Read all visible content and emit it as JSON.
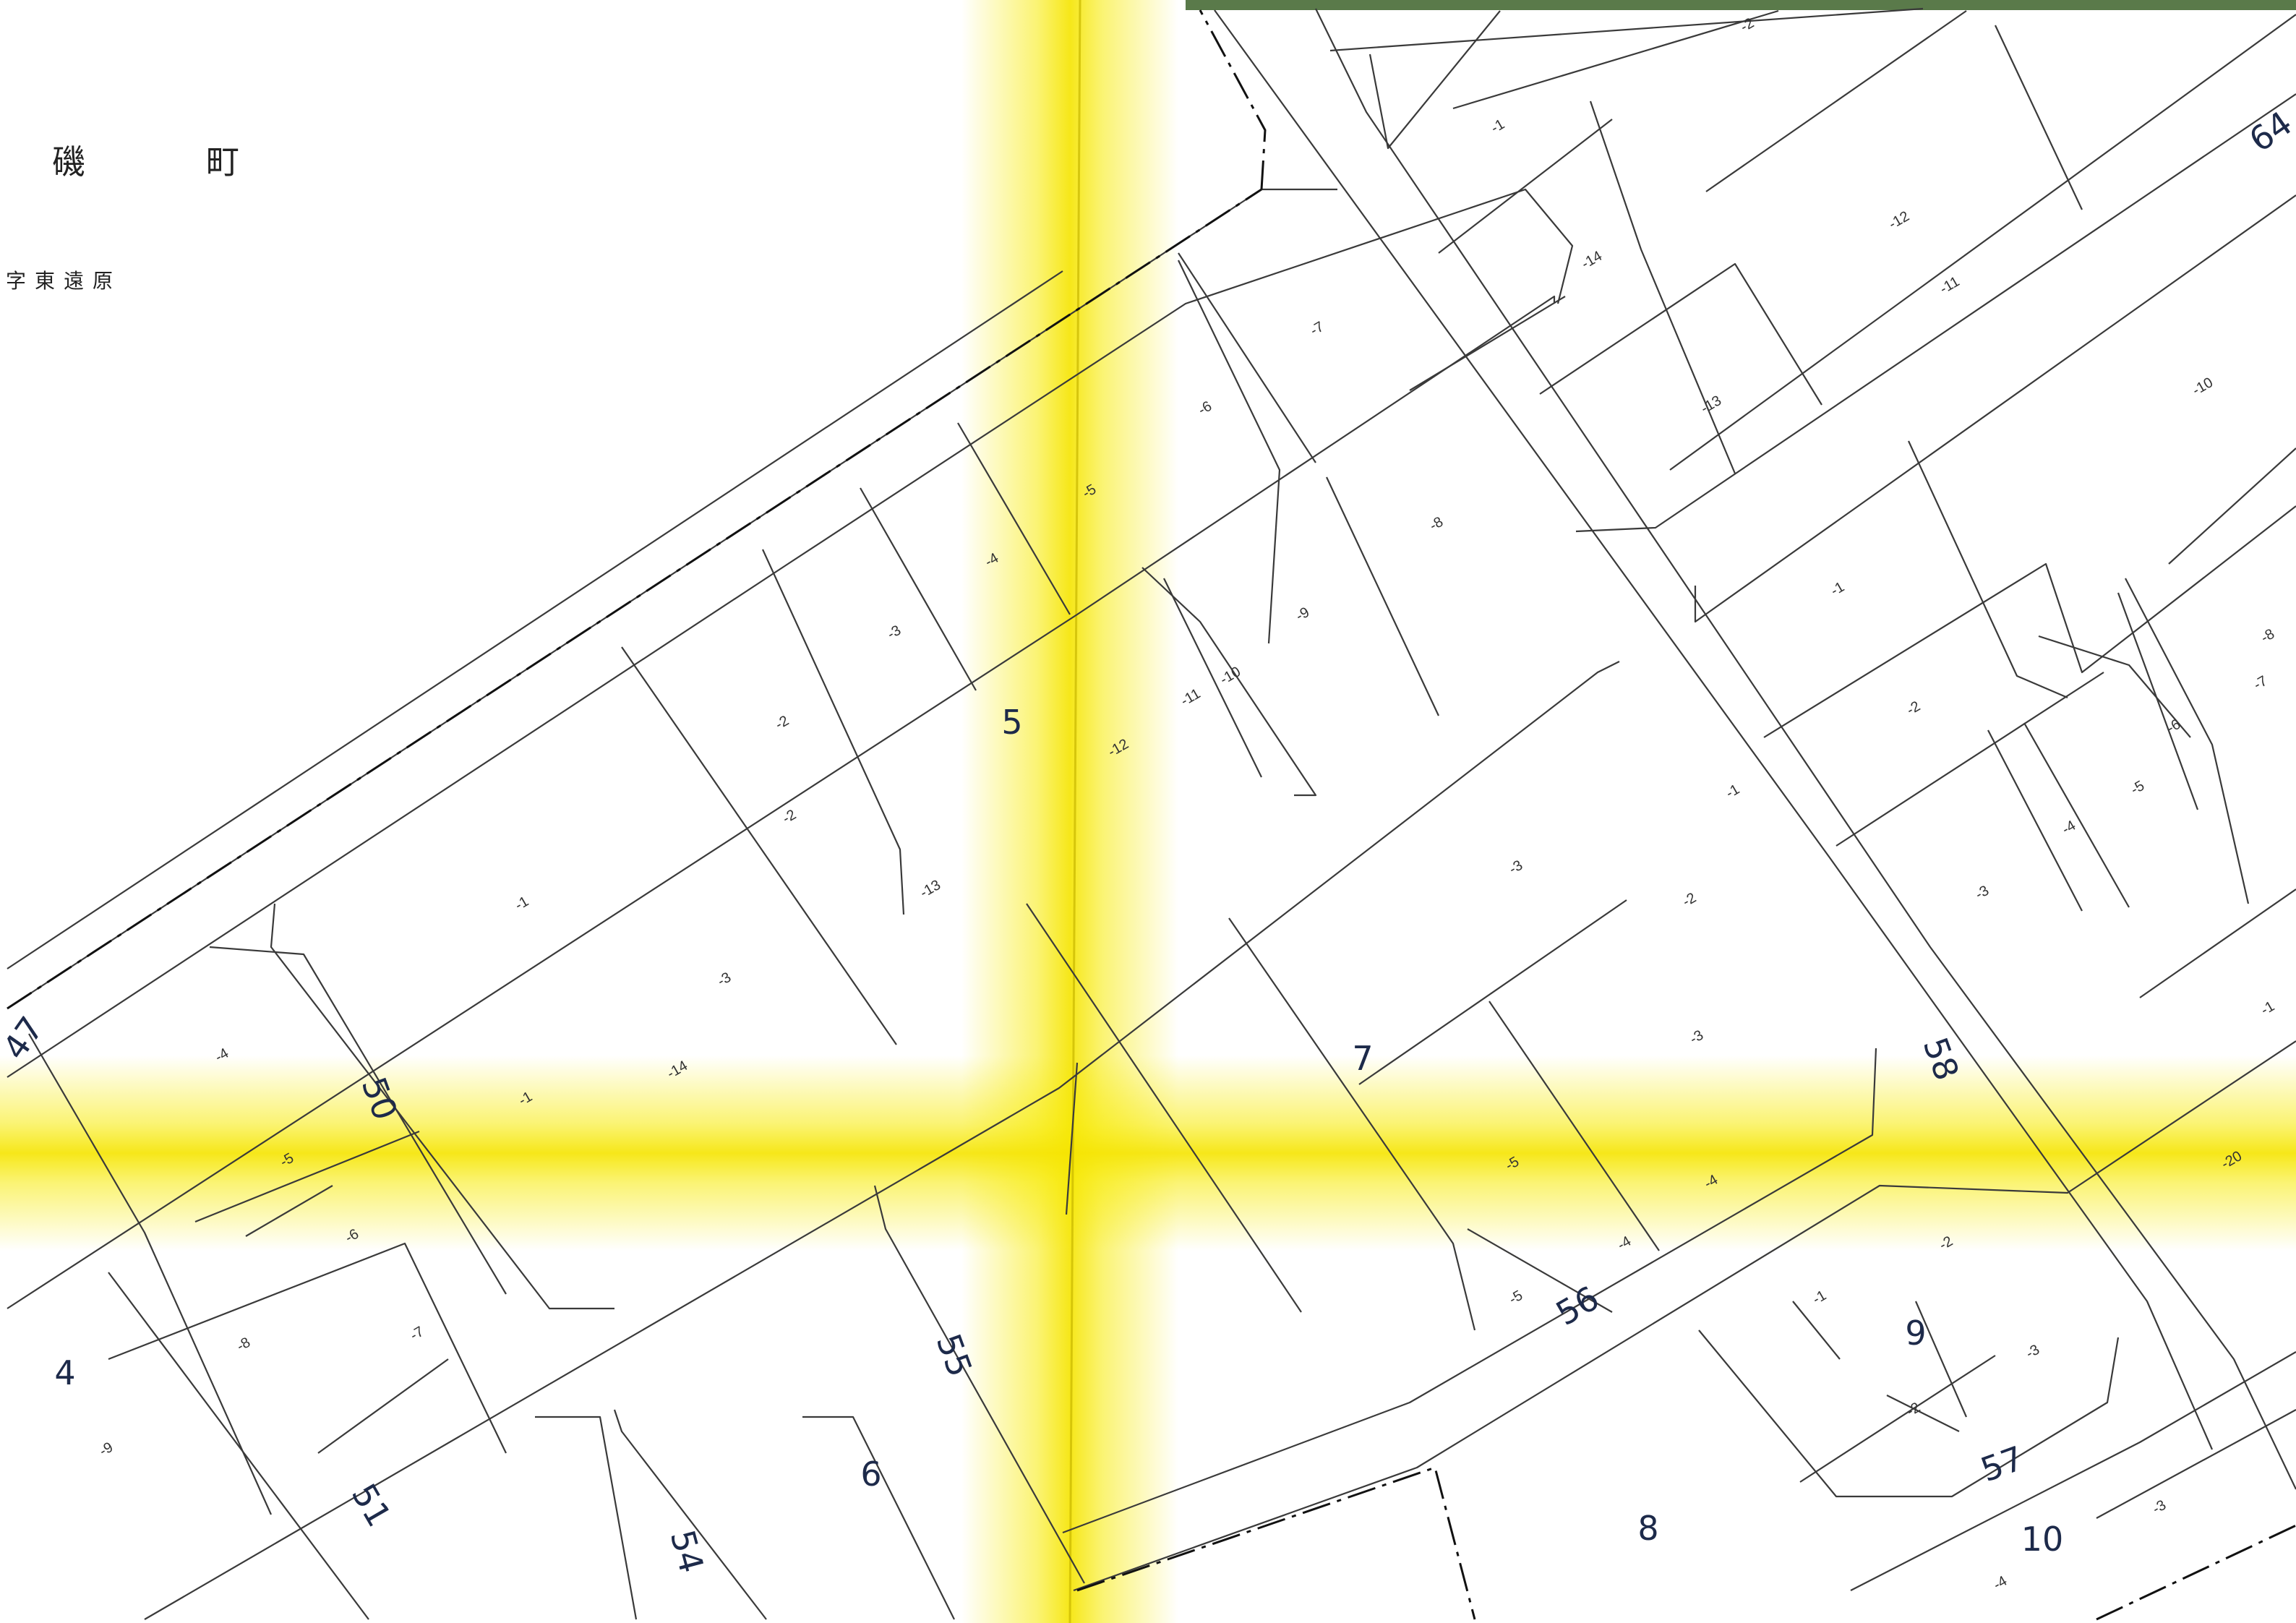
{
  "place": {
    "name_part1": "磯",
    "name_part2": "町",
    "district": "字東遠原"
  },
  "colors": {
    "paper": "#ffffff",
    "line": "#3a3a3a",
    "boundary": "#111111",
    "fold_stain": "#f7ea00",
    "text": "#1d2a4a",
    "top_edge": "#5a7a4a"
  },
  "map_data": {
    "type": "cadastral-map",
    "road_numbers": [
      {
        "label": "47"
      },
      {
        "label": "50"
      },
      {
        "label": "51"
      },
      {
        "label": "54"
      },
      {
        "label": "55"
      },
      {
        "label": "56"
      },
      {
        "label": "57"
      },
      {
        "label": "58"
      },
      {
        "label": "64"
      }
    ],
    "block_numbers": [
      {
        "label": "4"
      },
      {
        "label": "5"
      },
      {
        "label": "6"
      },
      {
        "label": "7"
      },
      {
        "label": "8"
      },
      {
        "label": "9"
      },
      {
        "label": "10"
      }
    ],
    "lot_numbers": [
      {
        "label": "-1"
      },
      {
        "label": "-2"
      },
      {
        "label": "-3"
      },
      {
        "label": "-4"
      },
      {
        "label": "-5"
      },
      {
        "label": "-6"
      },
      {
        "label": "-7"
      },
      {
        "label": "-8"
      },
      {
        "label": "-9"
      },
      {
        "label": "-10"
      },
      {
        "label": "-11"
      },
      {
        "label": "-12"
      },
      {
        "label": "-13"
      },
      {
        "label": "-14"
      },
      {
        "label": "-1"
      },
      {
        "label": "-2"
      },
      {
        "label": "-3"
      },
      {
        "label": "-4"
      },
      {
        "label": "-5"
      },
      {
        "label": "-6"
      },
      {
        "label": "-7"
      },
      {
        "label": "-8"
      },
      {
        "label": "-9"
      },
      {
        "label": "-1"
      },
      {
        "label": "-2"
      },
      {
        "label": "-3"
      },
      {
        "label": "-4"
      },
      {
        "label": "-5"
      },
      {
        "label": "-1"
      },
      {
        "label": "-2"
      },
      {
        "label": "-3"
      },
      {
        "label": "-4"
      },
      {
        "label": "-5"
      },
      {
        "label": "-6"
      },
      {
        "label": "-7"
      },
      {
        "label": "-8"
      },
      {
        "label": "-10"
      },
      {
        "label": "-11"
      },
      {
        "label": "-12"
      },
      {
        "label": "-13"
      },
      {
        "label": "-14"
      },
      {
        "label": "-1"
      },
      {
        "label": "-2"
      },
      {
        "label": "-3"
      },
      {
        "label": "-4"
      },
      {
        "label": "-1"
      },
      {
        "label": "-20"
      },
      {
        "label": "-2"
      },
      {
        "label": "-3"
      },
      {
        "label": "-1"
      },
      {
        "label": "-2"
      },
      {
        "label": "-3"
      },
      {
        "label": "-4"
      },
      {
        "label": "-5"
      }
    ]
  }
}
